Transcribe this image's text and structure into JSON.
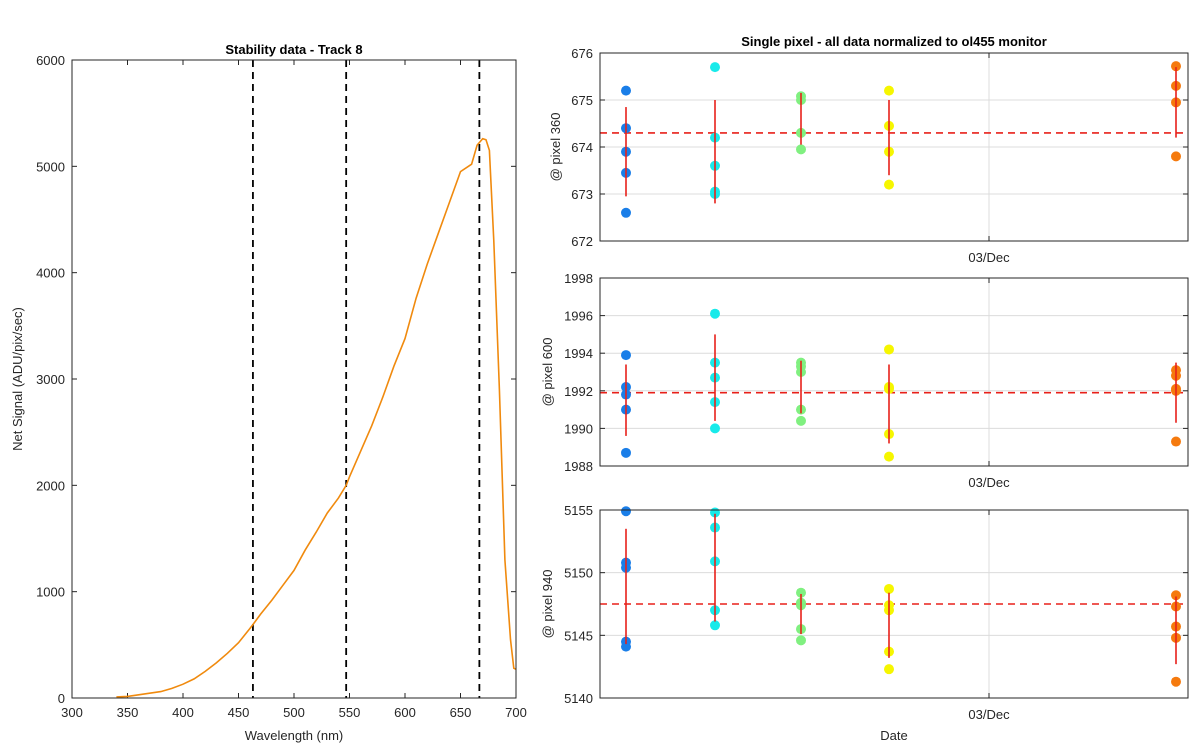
{
  "chart_data": [
    {
      "type": "line",
      "title": "Stability data - Track 8",
      "xlabel": "Wavelength (nm)",
      "ylabel": "Net Signal (ADU/pix/sec)",
      "xlim": [
        300,
        700
      ],
      "ylim": [
        0,
        6000
      ],
      "xticks": [
        300,
        350,
        400,
        450,
        500,
        550,
        600,
        650,
        700
      ],
      "yticks": [
        0,
        1000,
        2000,
        3000,
        4000,
        5000,
        6000
      ],
      "grid": false,
      "line_color": "#f08a0e",
      "vlines": [
        463,
        547,
        667
      ],
      "series": [
        {
          "name": "Net Signal",
          "x": [
            340,
            350,
            360,
            370,
            380,
            390,
            400,
            410,
            420,
            430,
            440,
            450,
            460,
            463,
            470,
            480,
            490,
            500,
            510,
            520,
            530,
            540,
            547,
            550,
            560,
            570,
            580,
            590,
            600,
            610,
            620,
            630,
            640,
            650,
            660,
            665,
            670,
            673,
            676,
            680,
            685,
            690,
            695,
            698,
            700
          ],
          "y": [
            10,
            15,
            30,
            45,
            60,
            90,
            130,
            180,
            250,
            330,
            420,
            520,
            650,
            690,
            790,
            920,
            1060,
            1200,
            1390,
            1560,
            1740,
            1880,
            2000,
            2080,
            2320,
            2560,
            2830,
            3120,
            3380,
            3760,
            4080,
            4370,
            4660,
            4950,
            5020,
            5200,
            5260,
            5250,
            5150,
            4300,
            2900,
            1300,
            550,
            280,
            270
          ]
        }
      ]
    },
    {
      "type": "scatter",
      "title": "Single pixel - all data normalized to ol455 monitor",
      "xlabel": "",
      "ylabel": "@ pixel 360",
      "xtick_label": "03/Dec",
      "ylim": [
        672,
        676
      ],
      "yticks": [
        672,
        673,
        674,
        675,
        676
      ],
      "mean": 674.3,
      "groups": [
        {
          "color": "#1a7ee8",
          "points": [
            672.6,
            673.45,
            673.9,
            674.4,
            675.2
          ],
          "mean": 673.9,
          "std": 0.95
        },
        {
          "color": "#18eaea",
          "points": [
            673.0,
            673.05,
            673.6,
            674.2,
            675.7
          ],
          "mean": 673.9,
          "std": 1.1
        },
        {
          "color": "#80f080",
          "points": [
            673.95,
            674.3,
            675.0,
            675.08
          ],
          "mean": 674.6,
          "std": 0.55
        },
        {
          "color": "#f6f600",
          "points": [
            673.2,
            673.9,
            674.45,
            675.2
          ],
          "mean": 674.2,
          "std": 0.8
        },
        {
          "color": "#f57a0e",
          "points": [
            673.8,
            674.95,
            675.3,
            675.72
          ],
          "mean": 674.95,
          "std": 0.75
        }
      ]
    },
    {
      "type": "scatter",
      "title": "",
      "xlabel": "",
      "ylabel": "@ pixel 600",
      "xtick_label": "03/Dec",
      "ylim": [
        1988,
        1998
      ],
      "yticks": [
        1988,
        1990,
        1992,
        1994,
        1996,
        1998
      ],
      "mean": 1991.9,
      "groups": [
        {
          "color": "#1a7ee8",
          "points": [
            1988.7,
            1991.0,
            1991.8,
            1992.2,
            1993.9
          ],
          "mean": 1991.5,
          "std": 1.9
        },
        {
          "color": "#18eaea",
          "points": [
            1990.0,
            1991.4,
            1992.7,
            1993.5,
            1996.1
          ],
          "mean": 1992.7,
          "std": 2.3
        },
        {
          "color": "#80f080",
          "points": [
            1990.4,
            1991.0,
            1993.0,
            1993.3,
            1993.5
          ],
          "mean": 1992.2,
          "std": 1.4
        },
        {
          "color": "#f6f600",
          "points": [
            1988.5,
            1989.7,
            1992.1,
            1992.2,
            1994.2
          ],
          "mean": 1991.3,
          "std": 2.1
        },
        {
          "color": "#f57a0e",
          "points": [
            1989.3,
            1992.0,
            1992.1,
            1992.8,
            1993.1
          ],
          "mean": 1991.9,
          "std": 1.6
        }
      ]
    },
    {
      "type": "scatter",
      "title": "",
      "xlabel": "Date",
      "ylabel": "@ pixel 940",
      "xtick_label": "03/Dec",
      "ylim": [
        5140,
        5155
      ],
      "yticks": [
        5140,
        5145,
        5150,
        5155
      ],
      "mean": 5147.5,
      "groups": [
        {
          "color": "#1a7ee8",
          "points": [
            5144.1,
            5144.5,
            5150.4,
            5150.8,
            5154.9
          ],
          "mean": 5148.9,
          "std": 4.6
        },
        {
          "color": "#18eaea",
          "points": [
            5145.8,
            5147.0,
            5150.9,
            5153.6,
            5154.8
          ],
          "mean": 5150.4,
          "std": 4.3
        },
        {
          "color": "#80f080",
          "points": [
            5144.6,
            5145.5,
            5147.4,
            5147.6,
            5148.4
          ],
          "mean": 5146.7,
          "std": 1.6
        },
        {
          "color": "#f6f600",
          "points": [
            5142.3,
            5143.7,
            5147.0,
            5147.4,
            5148.7
          ],
          "mean": 5145.8,
          "std": 2.6
        },
        {
          "color": "#f57a0e",
          "points": [
            5141.3,
            5144.8,
            5145.7,
            5147.3,
            5148.2
          ],
          "mean": 5145.4,
          "std": 2.7
        }
      ]
    }
  ]
}
